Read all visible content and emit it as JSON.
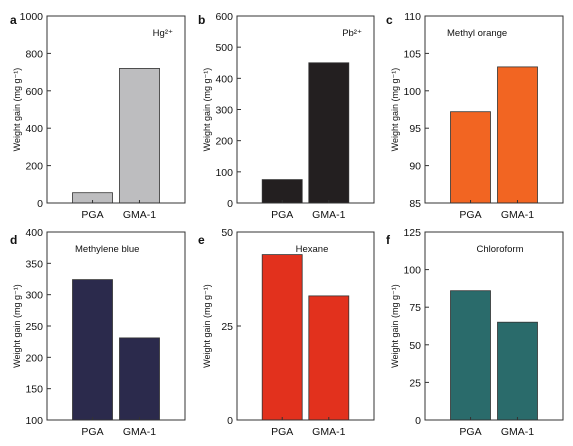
{
  "chart_data": [
    {
      "type": "bar",
      "panel": "a",
      "title": "Hg²⁺",
      "ylabel": "Weight gain (mg g⁻¹)",
      "categories": [
        "PGA",
        "GMA-1"
      ],
      "values": [
        55,
        720
      ],
      "ylim": [
        0,
        1000
      ],
      "yticks": [
        0,
        200,
        400,
        600,
        800,
        1000
      ],
      "color": "#bdbdbf"
    },
    {
      "type": "bar",
      "panel": "b",
      "title": "Pb²⁺",
      "ylabel": "Weight gain (mg g⁻¹)",
      "categories": [
        "PGA",
        "GMA-1"
      ],
      "values": [
        75,
        450
      ],
      "ylim": [
        0,
        600
      ],
      "yticks": [
        0,
        100,
        200,
        300,
        400,
        500,
        600
      ],
      "color": "#231f20"
    },
    {
      "type": "bar",
      "panel": "c",
      "title": "Methyl orange",
      "ylabel": "Weight gain (mg g⁻¹)",
      "categories": [
        "PGA",
        "GMA-1"
      ],
      "values": [
        97.2,
        103.2
      ],
      "ylim": [
        85,
        110
      ],
      "yticks": [
        85,
        90,
        95,
        100,
        105,
        110
      ],
      "color": "#f26522"
    },
    {
      "type": "bar",
      "panel": "d",
      "title": "Methylene blue",
      "ylabel": "Weight gain (mg g⁻¹)",
      "categories": [
        "PGA",
        "GMA-1"
      ],
      "values": [
        324,
        231
      ],
      "ylim": [
        100,
        400
      ],
      "yticks": [
        100,
        150,
        200,
        250,
        300,
        350,
        400
      ],
      "color": "#2b2a4c"
    },
    {
      "type": "bar",
      "panel": "e",
      "title": "Hexane",
      "ylabel": "Weight gain (mg g⁻¹)",
      "categories": [
        "PGA",
        "GMA-1"
      ],
      "values": [
        44,
        33
      ],
      "ylim": [
        0,
        50
      ],
      "yticks": [
        0,
        25,
        50
      ],
      "color": "#e2311d"
    },
    {
      "type": "bar",
      "panel": "f",
      "title": "Chloroform",
      "ylabel": "Weight gain (mg g⁻¹)",
      "categories": [
        "PGA",
        "GMA-1"
      ],
      "values": [
        86,
        65
      ],
      "ylim": [
        0,
        125
      ],
      "yticks": [
        0,
        25,
        50,
        75,
        100,
        125
      ],
      "color": "#2a6b6b"
    }
  ]
}
